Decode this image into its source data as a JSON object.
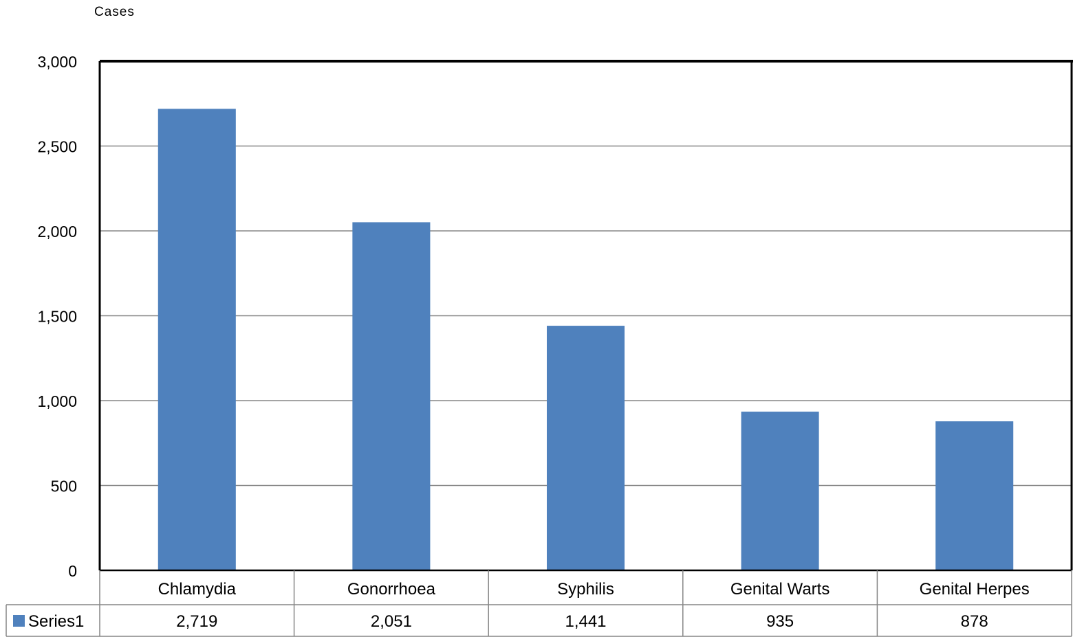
{
  "chart_data": {
    "type": "bar",
    "title": "",
    "ylabel": "Cases",
    "xlabel": "",
    "categories": [
      "Chlamydia",
      "Gonorrhoea",
      "Syphilis",
      "Genital Warts",
      "Genital Herpes"
    ],
    "series": [
      {
        "name": "Series1",
        "values": [
          2719,
          2051,
          1441,
          935,
          878
        ],
        "value_labels": [
          "2,719",
          "2,051",
          "1,441",
          "935",
          "878"
        ],
        "color": "#4f81bd"
      }
    ],
    "ylim": [
      0,
      3000
    ],
    "yticks": [
      0,
      500,
      1000,
      1500,
      2000,
      2500,
      3000
    ],
    "ytick_labels": [
      "0",
      "500",
      "1,000",
      "1,500",
      "2,000",
      "2,500",
      "3,000"
    ],
    "grid": true,
    "legend": "data-table-left"
  }
}
